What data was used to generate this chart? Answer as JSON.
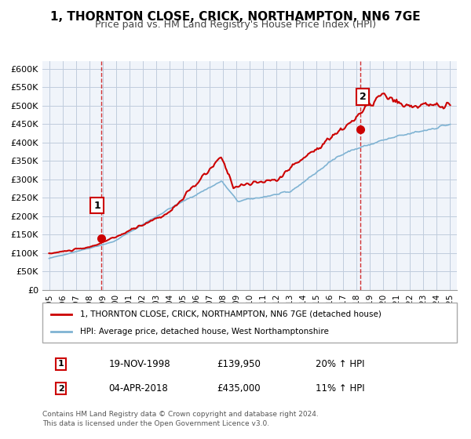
{
  "title": "1, THORNTON CLOSE, CRICK, NORTHAMPTON, NN6 7GE",
  "subtitle": "Price paid vs. HM Land Registry's House Price Index (HPI)",
  "legend_line1": "1, THORNTON CLOSE, CRICK, NORTHAMPTON, NN6 7GE (detached house)",
  "legend_line2": "HPI: Average price, detached house, West Northamptonshire",
  "footnote1": "Contains HM Land Registry data © Crown copyright and database right 2024.",
  "footnote2": "This data is licensed under the Open Government Licence v3.0.",
  "sale1_label": "1",
  "sale1_date": "19-NOV-1998",
  "sale1_price": "£139,950",
  "sale1_hpi": "20% ↑ HPI",
  "sale2_label": "2",
  "sale2_date": "04-APR-2018",
  "sale2_price": "£435,000",
  "sale2_hpi": "11% ↑ HPI",
  "sale1_year": 1998.88,
  "sale1_value": 139950,
  "sale2_year": 2018.25,
  "sale2_value": 435000,
  "red_color": "#cc0000",
  "blue_color": "#7fb3d3",
  "bg_color": "#f0f4fa",
  "grid_color": "#c0ccdd",
  "ylim": [
    0,
    620000
  ],
  "xlim": [
    1994.5,
    2025.5
  ],
  "yticks": [
    0,
    50000,
    100000,
    150000,
    200000,
    250000,
    300000,
    350000,
    400000,
    450000,
    500000,
    550000,
    600000
  ],
  "ytick_labels": [
    "£0",
    "£50K",
    "£100K",
    "£150K",
    "£200K",
    "£250K",
    "£300K",
    "£350K",
    "£400K",
    "£450K",
    "£500K",
    "£550K",
    "£600K"
  ],
  "xticks": [
    1995,
    1996,
    1997,
    1998,
    1999,
    2000,
    2001,
    2002,
    2003,
    2004,
    2005,
    2006,
    2007,
    2008,
    2009,
    2010,
    2011,
    2012,
    2013,
    2014,
    2015,
    2016,
    2017,
    2018,
    2019,
    2020,
    2021,
    2022,
    2023,
    2024,
    2025
  ]
}
